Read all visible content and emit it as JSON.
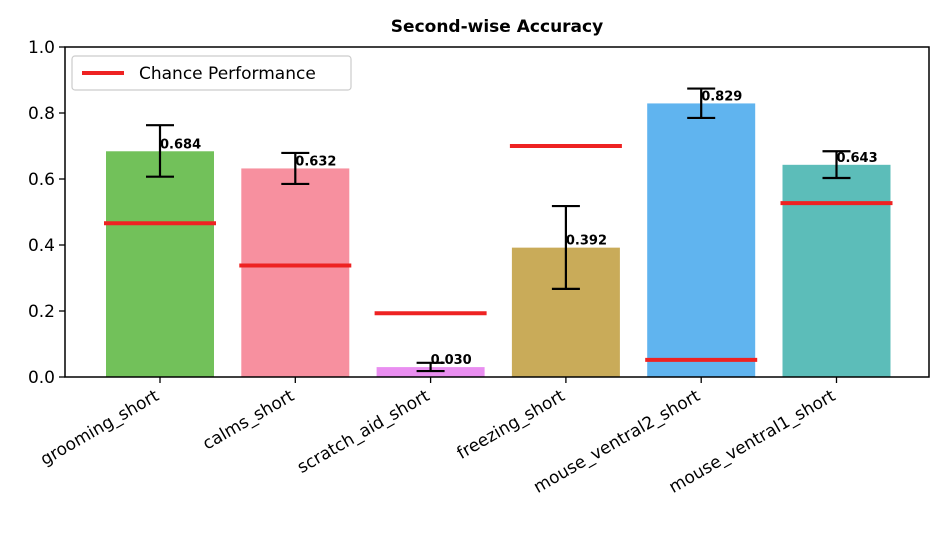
{
  "chart_data": {
    "type": "bar",
    "title": "Second-wise Accuracy",
    "xlabel": "",
    "ylabel": "",
    "ylim": [
      0,
      1.0
    ],
    "yticks": [
      "0.0",
      "0.2",
      "0.4",
      "0.6",
      "0.8",
      "1.0"
    ],
    "categories": [
      "grooming_short",
      "calms_short",
      "scratch_aid_short",
      "freezing_short",
      "mouse_ventral2_short",
      "mouse_ventral1_short"
    ],
    "values": [
      0.684,
      0.632,
      0.03,
      0.392,
      0.829,
      0.643
    ],
    "value_labels": [
      "0.684",
      "0.632",
      "0.030",
      "0.392",
      "0.829",
      "0.643"
    ],
    "error_low": [
      0.607,
      0.585,
      0.018,
      0.267,
      0.785,
      0.603
    ],
    "error_high": [
      0.763,
      0.679,
      0.043,
      0.518,
      0.874,
      0.684
    ],
    "chance": [
      0.466,
      0.338,
      0.193,
      0.7,
      0.052,
      0.527
    ],
    "bar_colors": [
      "#72c15a",
      "#f7909f",
      "#e98ef0",
      "#c9ab59",
      "#60b4ef",
      "#5cbdb9"
    ],
    "chance_color": "#ee2222",
    "legend": {
      "label": "Chance Performance",
      "location": "upper-left"
    },
    "grid": false
  }
}
